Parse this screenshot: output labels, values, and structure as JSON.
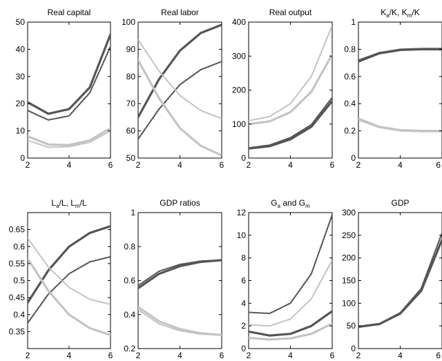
{
  "colors": {
    "dark": "#555555",
    "light": "#c4c4c4",
    "axis": "#000000",
    "background": "#ffffff"
  },
  "chart_data": [
    {
      "type": "line",
      "title": "Real capital",
      "x": [
        2,
        3,
        4,
        5,
        6
      ],
      "xlim": [
        2,
        6
      ],
      "ylim": [
        0,
        50
      ],
      "xticks": [
        "2",
        "4",
        "6"
      ],
      "yticks": [
        "0",
        "10",
        "20",
        "30",
        "40",
        "50"
      ],
      "grid": false,
      "series": [
        {
          "style": "dark-solid",
          "values": [
            20.5,
            16.3,
            18,
            26,
            45.5
          ]
        },
        {
          "style": "dark-dotted",
          "values": [
            17.5,
            14,
            15.5,
            24,
            41
          ]
        },
        {
          "style": "light-solid",
          "values": [
            8,
            5,
            4.8,
            6.5,
            11
          ]
        },
        {
          "style": "light-dotted",
          "values": [
            6.5,
            4,
            4.2,
            5.8,
            10
          ]
        }
      ]
    },
    {
      "type": "line",
      "title": "Real labor",
      "x": [
        2,
        3,
        4,
        5,
        6
      ],
      "xlim": [
        2,
        6
      ],
      "ylim": [
        50,
        100
      ],
      "xticks": [
        "2",
        "4",
        "6"
      ],
      "yticks": [
        "50",
        "60",
        "70",
        "80",
        "90",
        "100"
      ],
      "grid": false,
      "series": [
        {
          "style": "dark-solid",
          "values": [
            65,
            79,
            89.5,
            96,
            99
          ]
        },
        {
          "style": "dark-dotted",
          "values": [
            57,
            68,
            77,
            82.5,
            85.5
          ]
        },
        {
          "style": "light-solid",
          "values": [
            86,
            72,
            61,
            54.5,
            51
          ]
        },
        {
          "style": "light-dotted",
          "values": [
            93.5,
            82,
            73,
            67.5,
            64.5
          ]
        }
      ]
    },
    {
      "type": "line",
      "title": "Real output",
      "x": [
        2,
        3,
        4,
        5,
        6
      ],
      "xlim": [
        2,
        6
      ],
      "ylim": [
        0,
        400
      ],
      "xticks": [
        "2",
        "4",
        "6"
      ],
      "yticks": [
        "0",
        "100",
        "200",
        "300",
        "400"
      ],
      "grid": false,
      "series": [
        {
          "style": "dark-solid",
          "values": [
            28,
            35,
            55,
            92,
            168
          ]
        },
        {
          "style": "dark-dotted",
          "values": [
            30,
            38,
            60,
            98,
            178
          ]
        },
        {
          "style": "light-solid",
          "values": [
            100,
            108,
            135,
            195,
            305
          ]
        },
        {
          "style": "light-dotted",
          "values": [
            110,
            122,
            160,
            240,
            390
          ]
        }
      ]
    },
    {
      "type": "line",
      "title": "K_a/K, K_m/K",
      "x": [
        2,
        3,
        4,
        5,
        6
      ],
      "xlim": [
        2,
        6
      ],
      "ylim": [
        0,
        1
      ],
      "xticks": [
        "2",
        "4",
        "6"
      ],
      "yticks": [
        "0",
        "0.2",
        "0.4",
        "0.6",
        "0.8",
        "1"
      ],
      "grid": false,
      "series": [
        {
          "style": "dark-solid",
          "values": [
            0.71,
            0.77,
            0.795,
            0.8,
            0.8
          ]
        },
        {
          "style": "dark-dotted",
          "values": [
            0.72,
            0.775,
            0.8,
            0.805,
            0.805
          ]
        },
        {
          "style": "light-solid",
          "values": [
            0.29,
            0.23,
            0.205,
            0.2,
            0.2
          ]
        },
        {
          "style": "light-dotted",
          "values": [
            0.28,
            0.225,
            0.2,
            0.195,
            0.195
          ]
        }
      ]
    },
    {
      "type": "line",
      "title": "L_a/L, L_m/L",
      "x": [
        2,
        3,
        4,
        5,
        6
      ],
      "xlim": [
        2,
        6
      ],
      "ylim": [
        0.3,
        0.7
      ],
      "xticks": [
        "2",
        "4",
        "6"
      ],
      "yticks": [
        "0.35",
        "0.4",
        "0.45",
        "0.5",
        "0.55",
        "0.6",
        "0.65"
      ],
      "grid": false,
      "series": [
        {
          "style": "dark-solid",
          "values": [
            0.435,
            0.53,
            0.6,
            0.64,
            0.66
          ]
        },
        {
          "style": "dark-dotted",
          "values": [
            0.375,
            0.46,
            0.52,
            0.555,
            0.57
          ]
        },
        {
          "style": "light-solid",
          "values": [
            0.565,
            0.47,
            0.4,
            0.36,
            0.34
          ]
        },
        {
          "style": "light-dotted",
          "values": [
            0.625,
            0.54,
            0.48,
            0.445,
            0.43
          ]
        }
      ]
    },
    {
      "type": "line",
      "title": "GDP ratios",
      "x": [
        2,
        3,
        4,
        5,
        6
      ],
      "xlim": [
        2,
        6
      ],
      "ylim": [
        0.2,
        1
      ],
      "xticks": [
        "2",
        "4",
        "6"
      ],
      "yticks": [
        "0.2",
        "0.4",
        "0.6",
        "0.8",
        "1"
      ],
      "grid": false,
      "series": [
        {
          "style": "dark-solid",
          "values": [
            0.555,
            0.64,
            0.685,
            0.71,
            0.72
          ]
        },
        {
          "style": "dark-dotted",
          "values": [
            0.57,
            0.655,
            0.695,
            0.715,
            0.72
          ]
        },
        {
          "style": "light-solid",
          "values": [
            0.445,
            0.36,
            0.315,
            0.29,
            0.28
          ]
        },
        {
          "style": "light-dotted",
          "values": [
            0.43,
            0.345,
            0.305,
            0.285,
            0.28
          ]
        }
      ]
    },
    {
      "type": "line",
      "title": "G_a and G_m",
      "x": [
        2,
        3,
        4,
        5,
        6
      ],
      "xlim": [
        2,
        6
      ],
      "ylim": [
        0,
        12
      ],
      "xticks": [
        "2",
        "4",
        "6"
      ],
      "yticks": [
        "0",
        "2",
        "4",
        "6",
        "8",
        "10",
        "12"
      ],
      "grid": false,
      "series": [
        {
          "style": "dark-solid",
          "values": [
            1.5,
            1.15,
            1.3,
            2,
            3.3
          ]
        },
        {
          "style": "dark-dotted",
          "values": [
            3.2,
            3.1,
            4,
            6.6,
            11.8
          ]
        },
        {
          "style": "light-solid",
          "values": [
            0.95,
            0.8,
            0.9,
            1.3,
            2.2
          ]
        },
        {
          "style": "light-dotted",
          "values": [
            2.1,
            2,
            2.6,
            4.4,
            7.8
          ]
        }
      ]
    },
    {
      "type": "line",
      "title": "GDP",
      "x": [
        2,
        3,
        4,
        5,
        6
      ],
      "xlim": [
        2,
        6
      ],
      "ylim": [
        0,
        300
      ],
      "xticks": [
        "2",
        "4",
        "6"
      ],
      "yticks": [
        "0",
        "50",
        "100",
        "150",
        "200",
        "250",
        "300"
      ],
      "grid": false,
      "series": [
        {
          "style": "dark-solid",
          "values": [
            48,
            54,
            77,
            127,
            240
          ]
        },
        {
          "style": "dark-dotted",
          "values": [
            49,
            55,
            79,
            132,
            255
          ]
        }
      ]
    }
  ]
}
